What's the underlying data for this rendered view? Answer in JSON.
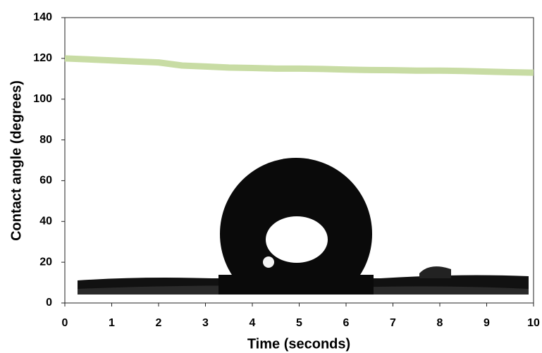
{
  "chart_data": {
    "type": "line",
    "x_label": "Time (seconds)",
    "y_label": "Contact angle (degrees)",
    "x": [
      0,
      0.5,
      1,
      1.5,
      2,
      2.5,
      3,
      3.5,
      4,
      4.5,
      5,
      5.5,
      6,
      6.5,
      7,
      7.5,
      8,
      8.5,
      9,
      9.5,
      10
    ],
    "values": [
      120,
      119.5,
      119,
      118.5,
      118,
      116.5,
      116,
      115.5,
      115.3,
      115,
      115,
      114.8,
      114.5,
      114.3,
      114.2,
      114,
      114,
      113.8,
      113.5,
      113.2,
      113
    ],
    "color": "#c8dca4",
    "xlim": [
      0,
      10
    ],
    "xticks": [
      0,
      1,
      2,
      3,
      4,
      5,
      6,
      7,
      8,
      9,
      10
    ],
    "ylim": [
      0,
      140
    ],
    "yticks": [
      0,
      20,
      40,
      60,
      80,
      100,
      120,
      140
    ]
  }
}
